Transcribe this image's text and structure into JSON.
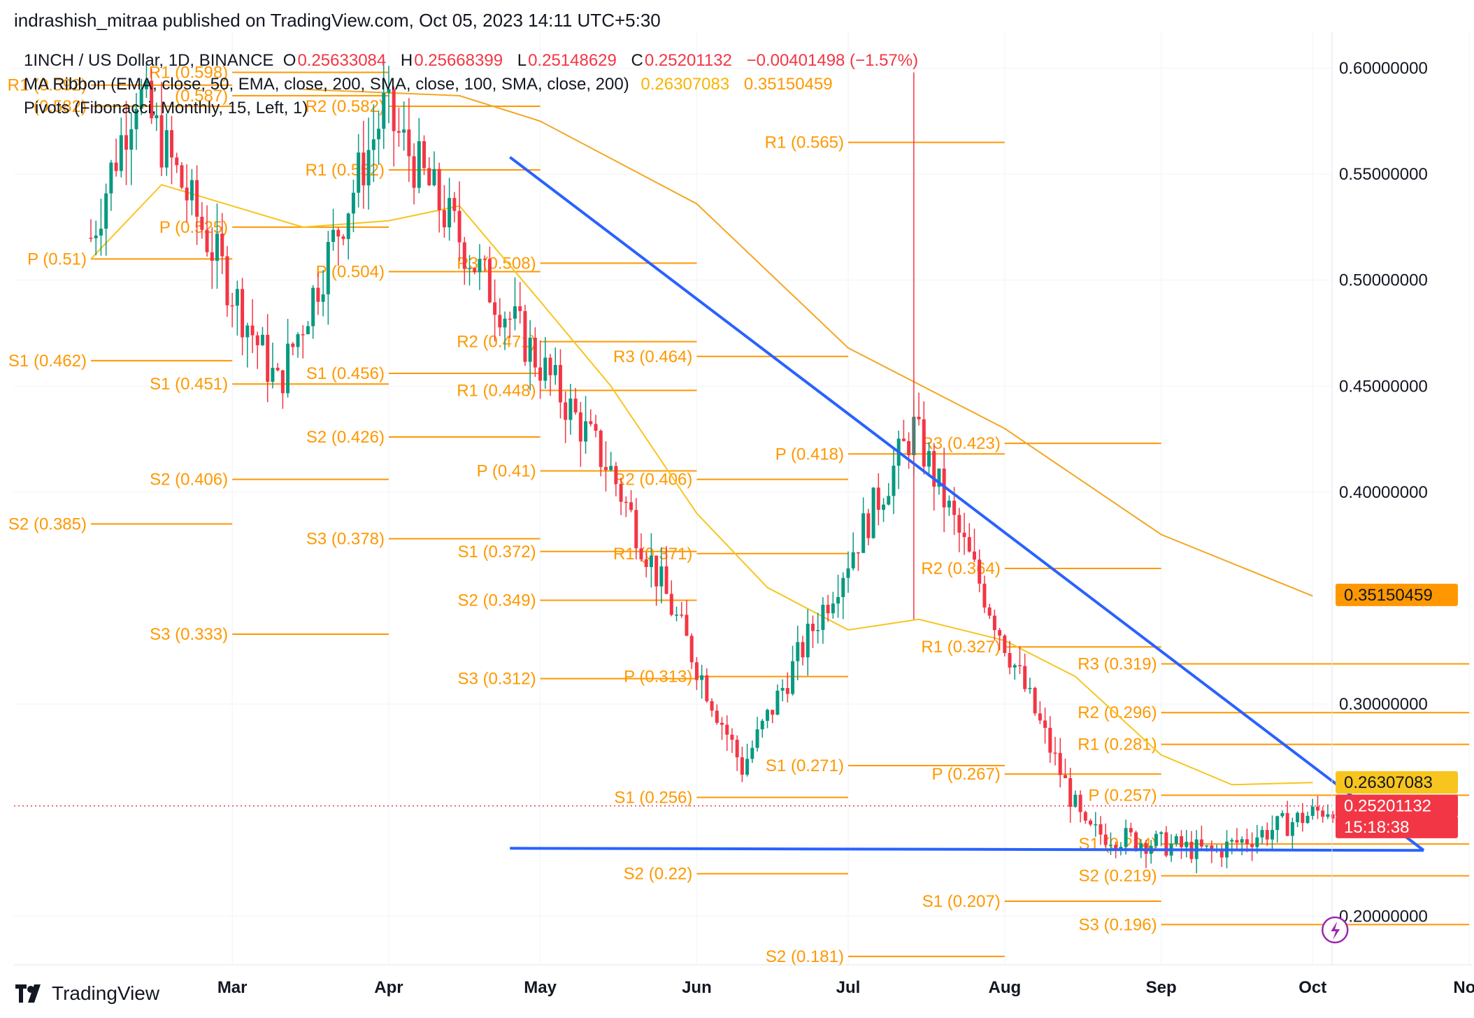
{
  "header": {
    "published": "indrashish_mitraa published on TradingView.com, Oct 05, 2023 14:11 UTC+5:30"
  },
  "legend": {
    "symbol": "1INCH / US Dollar, 1D, BINANCE",
    "o_label": "O",
    "o_value": "0.25633084",
    "h_label": "H",
    "h_value": "0.25668399",
    "l_label": "L",
    "l_value": "0.25148629",
    "c_label": "C",
    "c_value": "0.25201132",
    "change": "−0.00401498 (−1.57%)",
    "ma_ribbon": "MA Ribbon (EMA, close, 50, EMA, close, 200, SMA, close, 100, SMA, close, 200)",
    "ma_value_1": "0.26307083",
    "ma_value_2": "0.35150459",
    "pivots": "Pivots (Fibonacci, Monthly, 15, Left, 1)"
  },
  "footer": {
    "brand": "TradingView"
  },
  "colors": {
    "candle_up": "#089981",
    "candle_down": "#f23645",
    "pivot": "#ff9800",
    "ema50": "#f7c51e",
    "ma_slow": "#f5a623",
    "trendline": "#2962ff",
    "grid": "#f0f3fa",
    "text": "#131722"
  },
  "chart_data": {
    "type": "candlestick",
    "symbol": "1INCH / US Dollar",
    "interval": "1D",
    "exchange": "BINANCE",
    "x_ticks": [
      "Mar",
      "Apr",
      "May",
      "Jun",
      "Jul",
      "Aug",
      "Sep",
      "Oct",
      "Nov"
    ],
    "y_ticks": [
      "0.60000000",
      "0.55000000",
      "0.50000000",
      "0.45000000",
      "0.40000000",
      "0.30000000",
      "0.20000000"
    ],
    "ylim": [
      0.177,
      0.614
    ],
    "price_tags": [
      {
        "value": "0.35150459",
        "y_value": 0.3515,
        "bg": "#ff9800",
        "fg": "#131722"
      },
      {
        "value": "0.26307083",
        "y_value": 0.2631,
        "bg": "#f7c51e",
        "fg": "#131722"
      },
      {
        "value": "0.25201132",
        "y_value": 0.252,
        "bg": "#f23645",
        "fg": "#ffffff"
      },
      {
        "value": "15:18:38",
        "y_value": 0.242,
        "bg": "#f23645",
        "fg": "#ffffff"
      }
    ],
    "current_price": 0.25201132,
    "pivot_segments": [
      {
        "month": "Feb",
        "levels": [
          {
            "name": "R1",
            "value": 0.592,
            "label": "R1 (0.592)"
          },
          {
            "name": "P",
            "value": 0.51,
            "label": "P (0.51)"
          },
          {
            "name": "S1",
            "value": 0.462,
            "label": "S1 (0.462)"
          },
          {
            "name": "S2",
            "value": 0.385,
            "label": "S2 (0.385)"
          },
          {
            "name": "R?",
            "value": 0.582,
            "label": "(0.582)"
          }
        ]
      },
      {
        "month": "Mar",
        "levels": [
          {
            "name": "R1",
            "value": 0.598,
            "label": "R1 (0.598)"
          },
          {
            "name": "P",
            "value": 0.525,
            "label": "P (0.525)"
          },
          {
            "name": "S1",
            "value": 0.451,
            "label": "S1 (0.451)"
          },
          {
            "name": "S2",
            "value": 0.406,
            "label": "S2 (0.406)"
          },
          {
            "name": "S3",
            "value": 0.333,
            "label": "S3 (0.333)"
          },
          {
            "name": "",
            "value": 0.587,
            "label": "(0.587)"
          }
        ]
      },
      {
        "month": "Apr",
        "levels": [
          {
            "name": "R2",
            "value": 0.582,
            "label": "R2 (0.582)"
          },
          {
            "name": "R1",
            "value": 0.552,
            "label": "R1 (0.552)"
          },
          {
            "name": "P",
            "value": 0.504,
            "label": "P (0.504)"
          },
          {
            "name": "S1",
            "value": 0.456,
            "label": "S1 (0.456)"
          },
          {
            "name": "S2",
            "value": 0.426,
            "label": "S2 (0.426)"
          },
          {
            "name": "S3",
            "value": 0.378,
            "label": "S3 (0.378)"
          }
        ]
      },
      {
        "month": "May",
        "levels": [
          {
            "name": "R3",
            "value": 0.508,
            "label": "R3 (0.508)"
          },
          {
            "name": "R2",
            "value": 0.471,
            "label": "R2 (0.471)"
          },
          {
            "name": "R1",
            "value": 0.448,
            "label": "R1 (0.448)"
          },
          {
            "name": "P",
            "value": 0.41,
            "label": "P (0.41)"
          },
          {
            "name": "S1",
            "value": 0.372,
            "label": "S1 (0.372)"
          },
          {
            "name": "S2",
            "value": 0.349,
            "label": "S2 (0.349)"
          },
          {
            "name": "S3",
            "value": 0.312,
            "label": "S3 (0.312)"
          }
        ]
      },
      {
        "month": "Jun",
        "levels": [
          {
            "name": "R3",
            "value": 0.464,
            "label": "R3 (0.464)"
          },
          {
            "name": "R2",
            "value": 0.406,
            "label": "R2 (0.406)"
          },
          {
            "name": "R1",
            "value": 0.371,
            "label": "R1 (0.371)"
          },
          {
            "name": "P",
            "value": 0.313,
            "label": "P (0.313)"
          },
          {
            "name": "S1",
            "value": 0.256,
            "label": "S1 (0.256)"
          },
          {
            "name": "S2",
            "value": 0.22,
            "label": "S2 (0.22)"
          }
        ]
      },
      {
        "month": "Jul",
        "levels": [
          {
            "name": "R1",
            "value": 0.565,
            "label": "R1 (0.565)"
          },
          {
            "name": "P",
            "value": 0.418,
            "label": "P (0.418)"
          },
          {
            "name": "S1",
            "value": 0.271,
            "label": "S1 (0.271)"
          },
          {
            "name": "S2",
            "value": 0.181,
            "label": "S2 (0.181)"
          }
        ]
      },
      {
        "month": "Aug",
        "levels": [
          {
            "name": "R3",
            "value": 0.423,
            "label": "R3 (0.423)"
          },
          {
            "name": "R2",
            "value": 0.364,
            "label": "R2 (0.364)"
          },
          {
            "name": "R1",
            "value": 0.327,
            "label": "R1 (0.327)"
          },
          {
            "name": "P",
            "value": 0.267,
            "label": "P (0.267)"
          },
          {
            "name": "S1",
            "value": 0.207,
            "label": "S1 (0.207)"
          }
        ]
      },
      {
        "month": "Sep",
        "levels": [
          {
            "name": "R3",
            "value": 0.319,
            "label": "R3 (0.319)"
          },
          {
            "name": "R2",
            "value": 0.296,
            "label": "R2 (0.296)"
          },
          {
            "name": "R1",
            "value": 0.281,
            "label": "R1 (0.281)"
          },
          {
            "name": "P",
            "value": 0.257,
            "label": "P (0.257)"
          },
          {
            "name": "S1",
            "value": 0.234,
            "label": "S1 (0.234)"
          },
          {
            "name": "S2",
            "value": 0.219,
            "label": "S2 (0.219)"
          },
          {
            "name": "S3",
            "value": 0.196,
            "label": "S3 (0.196)"
          }
        ]
      }
    ],
    "trendlines": [
      {
        "name": "descending-resistance",
        "from": {
          "x": "Apr 25",
          "y": 0.558
        },
        "to": {
          "x": "Oct 23",
          "y": 0.231
        }
      },
      {
        "name": "horizontal-support",
        "from": {
          "x": "Apr 25",
          "y": 0.232
        },
        "to": {
          "x": "Oct 23",
          "y": 0.231
        }
      }
    ],
    "ma_ema50": [
      [
        "Feb 01",
        0.51
      ],
      [
        "Feb 15",
        0.545
      ],
      [
        "Mar 01",
        0.535
      ],
      [
        "Mar 15",
        0.525
      ],
      [
        "Apr 01",
        0.528
      ],
      [
        "Apr 15",
        0.535
      ],
      [
        "May 01",
        0.49
      ],
      [
        "May 15",
        0.45
      ],
      [
        "Jun 01",
        0.39
      ],
      [
        "Jun 15",
        0.355
      ],
      [
        "Jul 01",
        0.335
      ],
      [
        "Jul 15",
        0.34
      ],
      [
        "Aug 01",
        0.33
      ],
      [
        "Aug 15",
        0.313
      ],
      [
        "Sep 01",
        0.276
      ],
      [
        "Sep 15",
        0.262
      ],
      [
        "Oct 01",
        0.263
      ]
    ],
    "ma_slow": [
      [
        "Mar 15",
        0.59
      ],
      [
        "Apr 15",
        0.587
      ],
      [
        "May 01",
        0.575
      ],
      [
        "Jun 01",
        0.536
      ],
      [
        "Jul 01",
        0.468
      ],
      [
        "Aug 01",
        0.43
      ],
      [
        "Sep 01",
        0.38
      ],
      [
        "Oct 01",
        0.351
      ]
    ],
    "ohlc_sample": [
      {
        "date": "Feb 01",
        "o": 0.51,
        "h": 0.53,
        "l": 0.49,
        "c": 0.52
      },
      {
        "date": "Feb 10",
        "o": 0.56,
        "h": 0.61,
        "l": 0.54,
        "c": 0.59
      },
      {
        "date": "Mar 10",
        "o": 0.44,
        "h": 0.47,
        "l": 0.41,
        "c": 0.45
      },
      {
        "date": "Mar 31",
        "o": 0.57,
        "h": 0.6,
        "l": 0.54,
        "c": 0.58
      },
      {
        "date": "Apr 20",
        "o": 0.53,
        "h": 0.58,
        "l": 0.47,
        "c": 0.5
      },
      {
        "date": "May 15",
        "o": 0.41,
        "h": 0.43,
        "l": 0.39,
        "c": 0.41
      },
      {
        "date": "Jun 10",
        "o": 0.31,
        "h": 0.32,
        "l": 0.27,
        "c": 0.27
      },
      {
        "date": "Jul 14",
        "o": 0.4,
        "h": 0.49,
        "l": 0.34,
        "c": 0.43
      },
      {
        "date": "Aug 17",
        "o": 0.3,
        "h": 0.31,
        "l": 0.2,
        "c": 0.24
      },
      {
        "date": "Sep 11",
        "o": 0.235,
        "h": 0.245,
        "l": 0.22,
        "c": 0.23
      },
      {
        "date": "Oct 05",
        "o": 0.2563,
        "h": 0.2567,
        "l": 0.2515,
        "c": 0.252
      }
    ]
  }
}
